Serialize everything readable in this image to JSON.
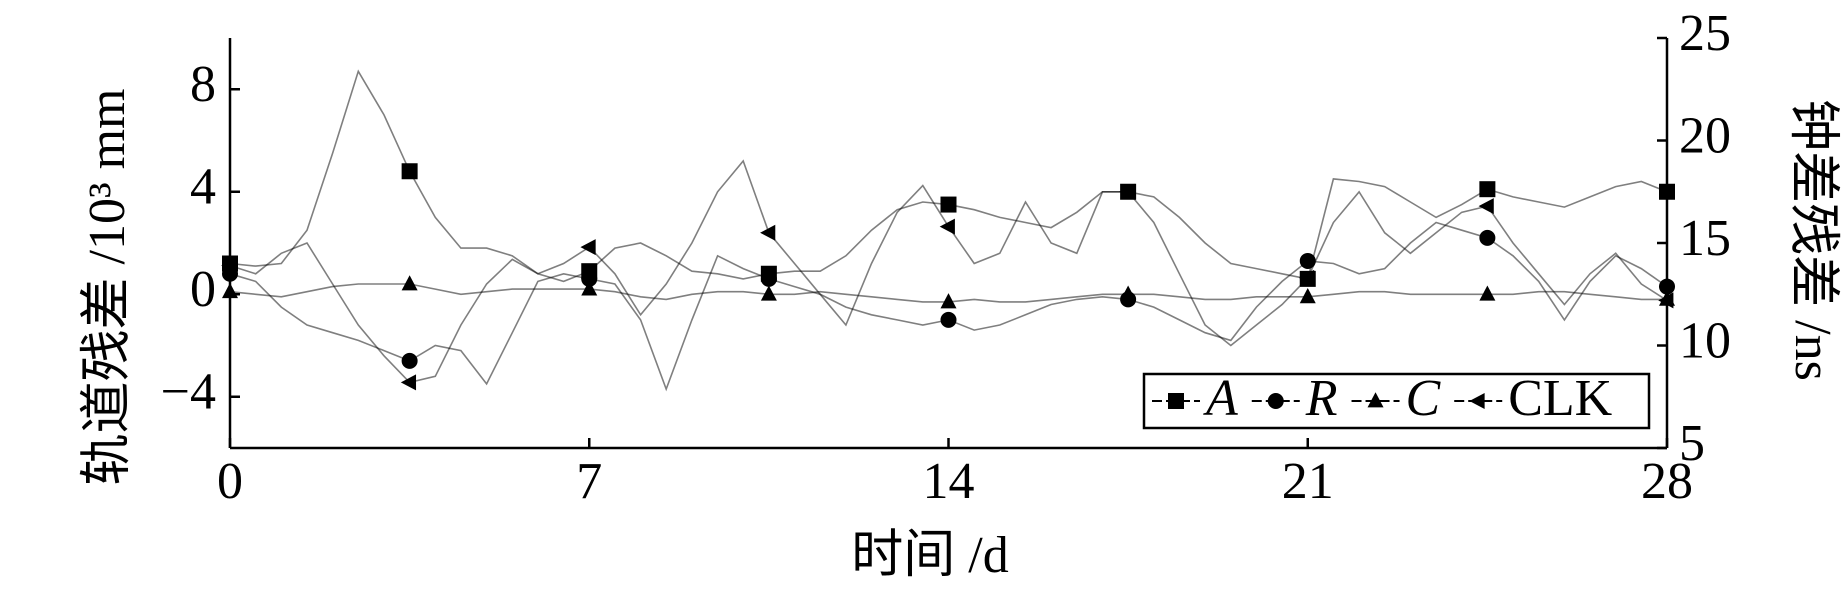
{
  "chart_data": {
    "type": "line",
    "xlabel": "时间 /d",
    "ylabel": "轨道残差 /10³ mm",
    "y2label": "钟差残差 /ns",
    "x": [
      0,
      0.5,
      1,
      1.5,
      2,
      2.5,
      3,
      3.5,
      4,
      4.5,
      5,
      5.5,
      6,
      6.5,
      7,
      7.5,
      8,
      8.5,
      9,
      9.5,
      10,
      10.5,
      11,
      11.5,
      12,
      12.5,
      13,
      13.5,
      14,
      14.5,
      15,
      15.5,
      16,
      16.5,
      17,
      17.5,
      18,
      18.5,
      19,
      19.5,
      20,
      20.5,
      21,
      21.5,
      22,
      22.5,
      23,
      23.5,
      24,
      24.5,
      25,
      25.5,
      26,
      26.5,
      27,
      27.5,
      28
    ],
    "xlim": [
      0,
      28
    ],
    "xticks": [
      0,
      7,
      14,
      21,
      28
    ],
    "ylim": [
      -6,
      10
    ],
    "yticks": [
      {
        "value": -4,
        "label": "−4"
      },
      0,
      4,
      8
    ],
    "y2lim": [
      5,
      25
    ],
    "y2ticks": [
      5,
      10,
      15,
      20,
      25
    ],
    "legend_position": "lower right",
    "series": [
      {
        "name": "A",
        "color": "#000000",
        "marker": "square",
        "values": [
          1.2,
          1.1,
          1.2,
          2.5,
          5.5,
          8.7,
          7.0,
          4.8,
          3.0,
          1.8,
          1.8,
          1.5,
          0.8,
          0.5,
          0.9,
          1.8,
          2.0,
          1.5,
          0.9,
          0.8,
          0.6,
          0.8,
          0.9,
          0.9,
          1.5,
          2.5,
          3.3,
          3.6,
          3.5,
          3.3,
          3.0,
          2.8,
          2.6,
          3.2,
          4.0,
          4.0,
          3.8,
          3.0,
          2.0,
          1.2,
          1.0,
          0.8,
          0.6,
          4.5,
          4.4,
          4.2,
          3.6,
          3.0,
          3.5,
          4.1,
          3.8,
          3.6,
          3.4,
          3.8,
          4.2,
          4.4,
          4.0
        ]
      },
      {
        "name": "R",
        "color": "#000000",
        "marker": "circle",
        "values": [
          0.8,
          0.5,
          -0.5,
          -1.2,
          -1.5,
          -1.8,
          -2.2,
          -2.6,
          -2.0,
          -2.2,
          -3.5,
          -1.5,
          0.5,
          0.8,
          0.6,
          0.4,
          -1.0,
          -3.7,
          -1.0,
          1.5,
          1.0,
          0.6,
          0.3,
          0.0,
          -0.5,
          -0.8,
          -1.0,
          -1.2,
          -1.0,
          -1.4,
          -1.2,
          -0.8,
          -0.4,
          -0.2,
          -0.1,
          -0.2,
          -0.5,
          -1.0,
          -1.5,
          -1.8,
          -0.5,
          0.5,
          1.3,
          1.2,
          0.8,
          1.0,
          2.0,
          2.8,
          2.5,
          2.2,
          1.5,
          0.5,
          -1.0,
          0.5,
          1.5,
          1.0,
          0.3
        ]
      },
      {
        "name": "C",
        "color": "#000000",
        "marker": "triangle",
        "values": [
          0.1,
          0,
          -0.1,
          0.1,
          0.3,
          0.4,
          0.4,
          0.4,
          0.2,
          0,
          0.1,
          0.2,
          0.2,
          0.2,
          0.2,
          0.1,
          -0.1,
          -0.2,
          0,
          0.1,
          0.1,
          0,
          0,
          0.1,
          0,
          -0.1,
          -0.2,
          -0.3,
          -0.3,
          -0.2,
          -0.3,
          -0.3,
          -0.2,
          -0.1,
          0,
          0,
          0,
          -0.1,
          -0.2,
          -0.2,
          -0.1,
          -0.1,
          -0.1,
          0,
          0.1,
          0.1,
          0,
          0,
          0,
          0,
          0,
          0.1,
          0.1,
          0,
          -0.1,
          -0.2,
          -0.2
        ]
      },
      {
        "name": "CLK",
        "color": "#000000",
        "marker": "triangle-left",
        "axis": "y2",
        "values": [
          13.9,
          13.5,
          14.5,
          15.0,
          13.0,
          11.0,
          9.5,
          8.2,
          8.5,
          11.0,
          13.0,
          14.2,
          13.5,
          14.0,
          14.8,
          13.5,
          11.5,
          13.0,
          15.0,
          17.5,
          19.0,
          15.5,
          14.0,
          12.5,
          11.0,
          14.0,
          16.5,
          17.8,
          15.8,
          14.0,
          14.5,
          17.0,
          15.0,
          14.5,
          17.5,
          17.5,
          16.0,
          13.5,
          11.0,
          10.0,
          11.0,
          12.0,
          13.3,
          16.0,
          17.5,
          15.5,
          14.5,
          15.5,
          16.5,
          16.8,
          15.0,
          13.5,
          12.0,
          13.5,
          14.5,
          13.0,
          12.2
        ]
      }
    ]
  }
}
